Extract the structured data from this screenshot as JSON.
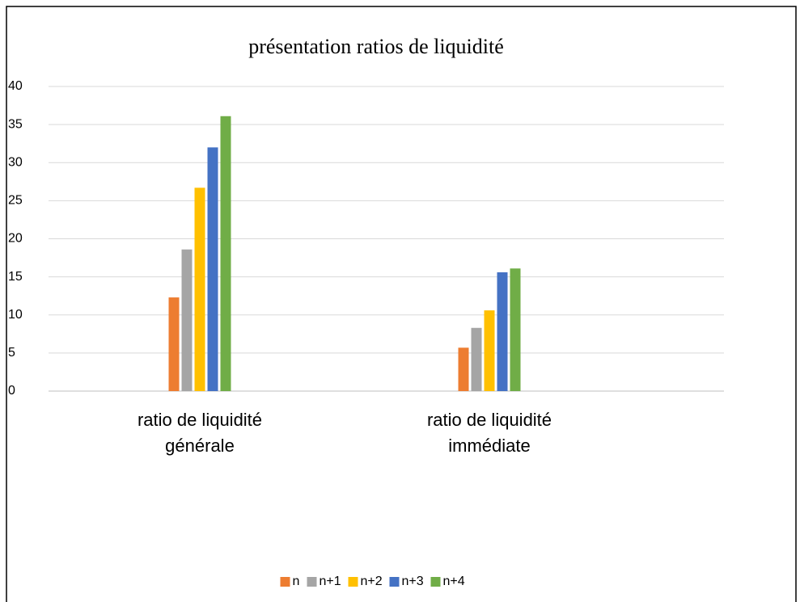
{
  "chart_data": {
    "type": "bar",
    "title": "présentation ratios de liquidité",
    "categories": [
      "ratio de liquidité générale",
      "ratio de liquidité immédiate"
    ],
    "series": [
      {
        "name": "n",
        "color": "#ed7d31",
        "values": [
          12.3,
          5.7
        ]
      },
      {
        "name": "n+1",
        "color": "#a5a5a5",
        "values": [
          18.6,
          8.3
        ]
      },
      {
        "name": "n+2",
        "color": "#ffc000",
        "values": [
          26.7,
          10.6
        ]
      },
      {
        "name": "n+3",
        "color": "#4472c4",
        "values": [
          32,
          15.6
        ]
      },
      {
        "name": "n+4",
        "color": "#70ad47",
        "values": [
          36.1,
          16.1
        ]
      }
    ],
    "ylim": [
      0,
      40
    ],
    "yticks": [
      0,
      5,
      10,
      15,
      20,
      25,
      30,
      35,
      40
    ],
    "grid": true,
    "legend": "bottom"
  }
}
